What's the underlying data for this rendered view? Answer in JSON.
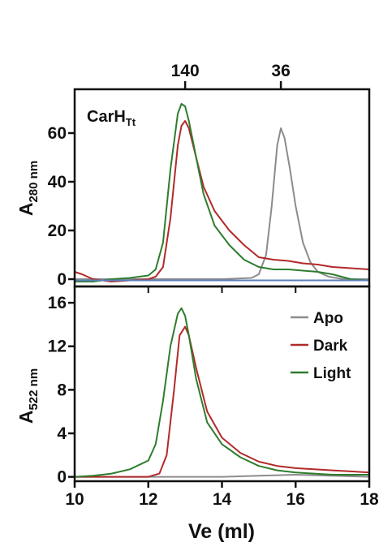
{
  "chart_data": [
    {
      "type": "line",
      "panel": "top",
      "annotation": {
        "main": "CarH",
        "sub": "Tt"
      },
      "ylabel": {
        "main": "A",
        "sub": "280 nm"
      },
      "xlim": [
        10,
        18
      ],
      "ylim": [
        -3,
        78
      ],
      "yticks": [
        0,
        20,
        40,
        60
      ],
      "top_axis": {
        "ticks": [
          {
            "x": 13.0,
            "label": "140"
          },
          {
            "x": 15.6,
            "label": "36"
          }
        ]
      },
      "series": [
        {
          "name": "Apo",
          "color": "#8c8c8c",
          "x": [
            10,
            12,
            14,
            14.8,
            15.0,
            15.2,
            15.35,
            15.5,
            15.6,
            15.7,
            15.85,
            16.0,
            16.2,
            16.4,
            16.6,
            16.9,
            17.3,
            18
          ],
          "y": [
            0,
            0,
            0,
            0.5,
            2,
            10,
            30,
            55,
            62,
            58,
            45,
            30,
            15,
            7,
            3,
            1,
            0,
            0
          ]
        },
        {
          "name": "Dark",
          "color": "#b22a2a",
          "x": [
            10,
            10.2,
            10.5,
            11,
            11.5,
            12,
            12.2,
            12.4,
            12.6,
            12.8,
            12.9,
            13.0,
            13.1,
            13.3,
            13.5,
            13.8,
            14.2,
            14.6,
            15.0,
            15.4,
            15.8,
            16.2,
            16.6,
            17,
            17.5,
            18
          ],
          "y": [
            3,
            2,
            0,
            -1,
            -0.5,
            0,
            1,
            5,
            25,
            55,
            63,
            65,
            62,
            50,
            38,
            28,
            20,
            14,
            9,
            8,
            7.5,
            6.5,
            6,
            5,
            4.5,
            4
          ]
        },
        {
          "name": "Light",
          "color": "#2e7d2e",
          "x": [
            10,
            10.5,
            11,
            11.5,
            12,
            12.2,
            12.4,
            12.6,
            12.8,
            12.9,
            13.0,
            13.1,
            13.3,
            13.5,
            13.8,
            14.2,
            14.6,
            15.0,
            15.4,
            15.8,
            16.2,
            16.6,
            17,
            17.5,
            18
          ],
          "y": [
            -1,
            -1,
            0,
            0.5,
            1.5,
            4,
            15,
            45,
            68,
            72,
            71,
            65,
            50,
            35,
            22,
            14,
            8,
            5,
            4,
            4,
            3.5,
            3,
            2,
            0,
            -0.5
          ]
        },
        {
          "name": "",
          "color": "#5b7fb8",
          "x": [
            10,
            18
          ],
          "y": [
            -0.5,
            -0.5
          ]
        }
      ]
    },
    {
      "type": "line",
      "panel": "bottom",
      "xlabel": "Ve (ml)",
      "ylabel": {
        "main": "A",
        "sub": "522 nm"
      },
      "xlim": [
        10,
        18
      ],
      "ylim": [
        -0.4,
        17.5
      ],
      "xticks": [
        10,
        12,
        14,
        16,
        18
      ],
      "yticks": [
        0,
        4,
        8,
        12,
        16
      ],
      "legend": "top-right",
      "series": [
        {
          "name": "Apo",
          "color": "#8c8c8c",
          "x": [
            10,
            14,
            15,
            16,
            17,
            18
          ],
          "y": [
            0,
            0,
            0.1,
            0.2,
            0.1,
            0
          ]
        },
        {
          "name": "Dark",
          "color": "#b22a2a",
          "x": [
            10,
            12,
            12.3,
            12.5,
            12.7,
            12.85,
            13.0,
            13.1,
            13.3,
            13.6,
            14.0,
            14.5,
            15.0,
            15.5,
            16.0,
            16.5,
            17,
            17.5,
            18
          ],
          "y": [
            0,
            0,
            0.3,
            2,
            8,
            13,
            13.8,
            13,
            10,
            6,
            3.6,
            2.2,
            1.4,
            1.0,
            0.8,
            0.7,
            0.6,
            0.5,
            0.4
          ]
        },
        {
          "name": "Light",
          "color": "#2e7d2e",
          "x": [
            10,
            10.5,
            11,
            11.5,
            12,
            12.2,
            12.4,
            12.6,
            12.8,
            12.9,
            13.0,
            13.1,
            13.3,
            13.6,
            14.0,
            14.5,
            15.0,
            15.5,
            16.0,
            16.5,
            17,
            17.5,
            18
          ],
          "y": [
            0,
            0.1,
            0.3,
            0.7,
            1.5,
            3,
            7,
            12,
            15,
            15.5,
            14.8,
            13,
            9,
            5,
            3,
            1.8,
            1.0,
            0.6,
            0.4,
            0.3,
            0.2,
            0.2,
            0.2
          ]
        }
      ]
    }
  ]
}
